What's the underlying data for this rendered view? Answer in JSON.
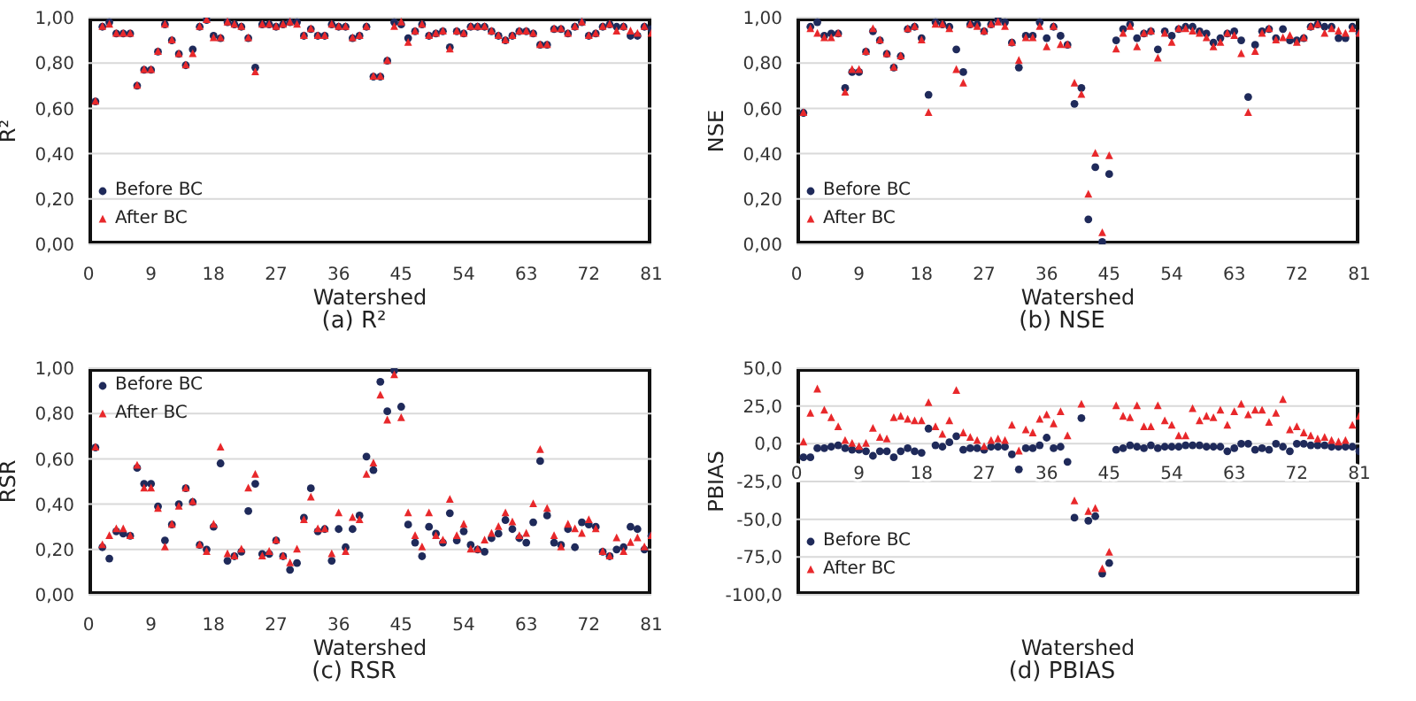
{
  "chart_data": [
    {
      "type": "scatter",
      "title": "(a) R²",
      "xlabel": "Watershed",
      "ylabel": "R²",
      "xlim": [
        0,
        81
      ],
      "xticks": [
        0,
        9,
        18,
        27,
        36,
        45,
        54,
        63,
        72,
        81
      ],
      "ylim": [
        0,
        1
      ],
      "yticks": [
        {
          "value": 0,
          "label": "0,00"
        },
        {
          "value": 0.2,
          "label": "0,20"
        },
        {
          "value": 0.4,
          "label": "0,40"
        },
        {
          "value": 0.6,
          "label": "0,60"
        },
        {
          "value": 0.8,
          "label": "0,80"
        },
        {
          "value": 1,
          "label": "1,00"
        }
      ],
      "grid": "y",
      "legend": "bottom left",
      "x": [
        1,
        2,
        3,
        4,
        5,
        6,
        7,
        8,
        9,
        10,
        11,
        12,
        13,
        14,
        15,
        16,
        17,
        18,
        19,
        20,
        21,
        22,
        23,
        24,
        25,
        26,
        27,
        28,
        29,
        30,
        31,
        32,
        33,
        34,
        35,
        36,
        37,
        38,
        39,
        40,
        41,
        42,
        43,
        44,
        45,
        46,
        47,
        48,
        49,
        50,
        51,
        52,
        53,
        54,
        55,
        56,
        57,
        58,
        59,
        60,
        61,
        62,
        63,
        64,
        65,
        66,
        67,
        68,
        69,
        70,
        71,
        72,
        73,
        74,
        75,
        76,
        77,
        78,
        79,
        80,
        81
      ],
      "series": [
        {
          "name": "Before BC",
          "color": "#1f2a5a",
          "marker": "circle",
          "values": [
            0.63,
            0.96,
            0.98,
            0.93,
            0.93,
            0.93,
            0.7,
            0.77,
            0.77,
            0.85,
            0.97,
            0.9,
            0.84,
            0.79,
            0.86,
            0.96,
            0.99,
            0.92,
            0.91,
            0.98,
            0.97,
            0.96,
            0.91,
            0.78,
            0.97,
            0.97,
            0.96,
            0.97,
            0.98,
            0.98,
            0.92,
            0.95,
            0.92,
            0.92,
            0.97,
            0.96,
            0.96,
            0.91,
            0.92,
            0.96,
            0.74,
            0.74,
            0.81,
            0.98,
            0.97,
            0.91,
            0.94,
            0.97,
            0.92,
            0.93,
            0.94,
            0.87,
            0.94,
            0.93,
            0.96,
            0.96,
            0.96,
            0.94,
            0.92,
            0.9,
            0.92,
            0.94,
            0.94,
            0.93,
            0.88,
            0.88,
            0.95,
            0.95,
            0.93,
            0.96,
            0.98,
            0.92,
            0.93,
            0.96,
            0.97,
            0.96,
            0.96,
            0.92,
            0.92,
            0.96,
            0.95
          ]
        },
        {
          "name": "After BC",
          "color": "#e8282b",
          "marker": "triangle",
          "values": [
            0.63,
            0.96,
            0.97,
            0.93,
            0.93,
            0.93,
            0.7,
            0.77,
            0.77,
            0.85,
            0.97,
            0.9,
            0.84,
            0.79,
            0.84,
            0.96,
            0.99,
            0.91,
            0.91,
            0.98,
            0.97,
            0.96,
            0.91,
            0.76,
            0.97,
            0.97,
            0.96,
            0.97,
            0.98,
            0.97,
            0.92,
            0.95,
            0.92,
            0.92,
            0.97,
            0.96,
            0.96,
            0.91,
            0.92,
            0.96,
            0.74,
            0.74,
            0.81,
            0.96,
            0.98,
            0.89,
            0.94,
            0.97,
            0.92,
            0.93,
            0.94,
            0.86,
            0.94,
            0.93,
            0.96,
            0.96,
            0.96,
            0.94,
            0.92,
            0.9,
            0.92,
            0.94,
            0.94,
            0.93,
            0.88,
            0.88,
            0.95,
            0.95,
            0.93,
            0.96,
            0.98,
            0.92,
            0.93,
            0.96,
            0.97,
            0.94,
            0.96,
            0.94,
            0.93,
            0.96,
            0.93
          ]
        }
      ]
    },
    {
      "type": "scatter",
      "title": "(b) NSE",
      "xlabel": "Watershed",
      "ylabel": "NSE",
      "xlim": [
        0,
        81
      ],
      "xticks": [
        0,
        9,
        18,
        27,
        36,
        45,
        54,
        63,
        72,
        81
      ],
      "ylim": [
        0,
        1
      ],
      "yticks": [
        {
          "value": 0,
          "label": "0,00"
        },
        {
          "value": 0.2,
          "label": "0,20"
        },
        {
          "value": 0.4,
          "label": "0,40"
        },
        {
          "value": 0.6,
          "label": "0,60"
        },
        {
          "value": 0.8,
          "label": "0,80"
        },
        {
          "value": 1,
          "label": "1,00"
        }
      ],
      "grid": "y",
      "legend": "bottom left",
      "x": [
        1,
        2,
        3,
        4,
        5,
        6,
        7,
        8,
        9,
        10,
        11,
        12,
        13,
        14,
        15,
        16,
        17,
        18,
        19,
        20,
        21,
        22,
        23,
        24,
        25,
        26,
        27,
        28,
        29,
        30,
        31,
        32,
        33,
        34,
        35,
        36,
        37,
        38,
        39,
        40,
        41,
        42,
        43,
        44,
        45,
        46,
        47,
        48,
        49,
        50,
        51,
        52,
        53,
        54,
        55,
        56,
        57,
        58,
        59,
        60,
        61,
        62,
        63,
        64,
        65,
        66,
        67,
        68,
        69,
        70,
        71,
        72,
        73,
        74,
        75,
        76,
        77,
        78,
        79,
        80,
        81
      ],
      "series": [
        {
          "name": "Before BC",
          "color": "#1f2a5a",
          "marker": "circle",
          "values": [
            0.58,
            0.96,
            0.98,
            0.92,
            0.93,
            0.93,
            0.69,
            0.76,
            0.76,
            0.85,
            0.94,
            0.9,
            0.84,
            0.78,
            0.83,
            0.95,
            0.96,
            0.91,
            0.66,
            0.98,
            0.97,
            0.96,
            0.86,
            0.76,
            0.97,
            0.97,
            0.94,
            0.97,
            0.99,
            0.98,
            0.89,
            0.78,
            0.92,
            0.92,
            0.98,
            0.91,
            0.96,
            0.92,
            0.88,
            0.62,
            0.69,
            0.11,
            0.34,
            0.01,
            0.31,
            0.9,
            0.95,
            0.97,
            0.91,
            0.93,
            0.94,
            0.86,
            0.94,
            0.92,
            0.95,
            0.96,
            0.96,
            0.94,
            0.93,
            0.89,
            0.91,
            0.93,
            0.94,
            0.9,
            0.65,
            0.88,
            0.94,
            0.95,
            0.91,
            0.95,
            0.9,
            0.9,
            0.91,
            0.96,
            0.97,
            0.96,
            0.96,
            0.91,
            0.91,
            0.96,
            0.93
          ]
        },
        {
          "name": "After BC",
          "color": "#e8282b",
          "marker": "triangle",
          "values": [
            0.58,
            0.95,
            0.93,
            0.91,
            0.91,
            0.93,
            0.67,
            0.77,
            0.77,
            0.85,
            0.95,
            0.9,
            0.84,
            0.78,
            0.83,
            0.95,
            0.96,
            0.9,
            0.58,
            0.97,
            0.97,
            0.95,
            0.77,
            0.71,
            0.97,
            0.96,
            0.94,
            0.97,
            0.98,
            0.96,
            0.89,
            0.81,
            0.91,
            0.91,
            0.96,
            0.87,
            0.96,
            0.88,
            0.88,
            0.71,
            0.66,
            0.22,
            0.4,
            0.05,
            0.39,
            0.86,
            0.93,
            0.96,
            0.87,
            0.93,
            0.94,
            0.82,
            0.93,
            0.89,
            0.95,
            0.95,
            0.94,
            0.93,
            0.91,
            0.87,
            0.89,
            0.93,
            0.92,
            0.84,
            0.58,
            0.85,
            0.93,
            0.95,
            0.9,
            0.91,
            0.92,
            0.89,
            0.91,
            0.96,
            0.97,
            0.93,
            0.95,
            0.94,
            0.93,
            0.95,
            0.93
          ]
        }
      ]
    },
    {
      "type": "scatter",
      "title": "(c) RSR",
      "xlabel": "Watershed",
      "ylabel": "RSR",
      "xlim": [
        0,
        81
      ],
      "xticks": [
        0,
        9,
        18,
        27,
        36,
        45,
        54,
        63,
        72,
        81
      ],
      "ylim": [
        0,
        1
      ],
      "yticks": [
        {
          "value": 0,
          "label": "0,00"
        },
        {
          "value": 0.2,
          "label": "0,20"
        },
        {
          "value": 0.4,
          "label": "0,40"
        },
        {
          "value": 0.6,
          "label": "0,60"
        },
        {
          "value": 0.8,
          "label": "0,80"
        },
        {
          "value": 1,
          "label": "1,00"
        }
      ],
      "grid": "y",
      "legend": "top left",
      "x": [
        1,
        2,
        3,
        4,
        5,
        6,
        7,
        8,
        9,
        10,
        11,
        12,
        13,
        14,
        15,
        16,
        17,
        18,
        19,
        20,
        21,
        22,
        23,
        24,
        25,
        26,
        27,
        28,
        29,
        30,
        31,
        32,
        33,
        34,
        35,
        36,
        37,
        38,
        39,
        40,
        41,
        42,
        43,
        44,
        45,
        46,
        47,
        48,
        49,
        50,
        51,
        52,
        53,
        54,
        55,
        56,
        57,
        58,
        59,
        60,
        61,
        62,
        63,
        64,
        65,
        66,
        67,
        68,
        69,
        70,
        71,
        72,
        73,
        74,
        75,
        76,
        77,
        78,
        79,
        80,
        81
      ],
      "series": [
        {
          "name": "Before BC",
          "color": "#1f2a5a",
          "marker": "circle",
          "values": [
            0.65,
            0.21,
            0.16,
            0.28,
            0.27,
            0.26,
            0.56,
            0.49,
            0.49,
            0.39,
            0.24,
            0.31,
            0.4,
            0.47,
            0.41,
            0.22,
            0.2,
            0.3,
            0.58,
            0.15,
            0.17,
            0.19,
            0.37,
            0.49,
            0.18,
            0.18,
            0.24,
            0.17,
            0.11,
            0.14,
            0.34,
            0.47,
            0.28,
            0.29,
            0.15,
            0.29,
            0.21,
            0.29,
            0.35,
            0.61,
            0.55,
            0.94,
            0.81,
            0.99,
            0.83,
            0.31,
            0.23,
            0.17,
            0.3,
            0.27,
            0.23,
            0.36,
            0.24,
            0.28,
            0.22,
            0.2,
            0.19,
            0.25,
            0.27,
            0.33,
            0.29,
            0.25,
            0.23,
            0.32,
            0.59,
            0.35,
            0.23,
            0.22,
            0.29,
            0.21,
            0.32,
            0.31,
            0.3,
            0.19,
            0.17,
            0.2,
            0.21,
            0.3,
            0.29,
            0.2,
            0.26
          ]
        },
        {
          "name": "After BC",
          "color": "#e8282b",
          "marker": "triangle",
          "values": [
            0.65,
            0.22,
            0.26,
            0.29,
            0.29,
            0.26,
            0.57,
            0.47,
            0.47,
            0.38,
            0.21,
            0.31,
            0.39,
            0.47,
            0.41,
            0.22,
            0.19,
            0.31,
            0.65,
            0.18,
            0.17,
            0.2,
            0.47,
            0.53,
            0.17,
            0.19,
            0.24,
            0.17,
            0.14,
            0.2,
            0.33,
            0.43,
            0.29,
            0.29,
            0.18,
            0.36,
            0.19,
            0.34,
            0.33,
            0.53,
            0.58,
            0.88,
            0.77,
            0.97,
            0.78,
            0.36,
            0.26,
            0.21,
            0.36,
            0.26,
            0.24,
            0.42,
            0.26,
            0.31,
            0.2,
            0.2,
            0.24,
            0.27,
            0.3,
            0.36,
            0.32,
            0.26,
            0.27,
            0.4,
            0.64,
            0.38,
            0.26,
            0.21,
            0.31,
            0.29,
            0.27,
            0.33,
            0.29,
            0.19,
            0.17,
            0.25,
            0.19,
            0.23,
            0.25,
            0.21,
            0.26
          ]
        }
      ]
    },
    {
      "type": "scatter",
      "title": "(d) PBIAS",
      "xlabel": "Watershed",
      "ylabel": "PBIAS",
      "xlim": [
        0,
        81
      ],
      "xticks": [
        0,
        9,
        18,
        27,
        36,
        45,
        54,
        63,
        72,
        81
      ],
      "ylim": [
        -100,
        50
      ],
      "yticks": [
        {
          "value": -100,
          "label": "-100,0"
        },
        {
          "value": -75,
          "label": "-75,0"
        },
        {
          "value": -50,
          "label": "-50,0"
        },
        {
          "value": -25,
          "label": "-25,0"
        },
        {
          "value": 0,
          "label": "0,0"
        },
        {
          "value": 25,
          "label": "25,0"
        },
        {
          "value": 50,
          "label": "50,0"
        }
      ],
      "grid": "y",
      "legend": "bottom left",
      "x": [
        1,
        2,
        3,
        4,
        5,
        6,
        7,
        8,
        9,
        10,
        11,
        12,
        13,
        14,
        15,
        16,
        17,
        18,
        19,
        20,
        21,
        22,
        23,
        24,
        25,
        26,
        27,
        28,
        29,
        30,
        31,
        32,
        33,
        34,
        35,
        36,
        37,
        38,
        39,
        40,
        41,
        42,
        43,
        44,
        45,
        46,
        47,
        48,
        49,
        50,
        51,
        52,
        53,
        54,
        55,
        56,
        57,
        58,
        59,
        60,
        61,
        62,
        63,
        64,
        65,
        66,
        67,
        68,
        69,
        70,
        71,
        72,
        73,
        74,
        75,
        76,
        77,
        78,
        79,
        80,
        81
      ],
      "series": [
        {
          "name": "Before BC",
          "color": "#1f2a5a",
          "marker": "circle",
          "values": [
            -9,
            -9,
            -3,
            -3,
            -2,
            -1,
            -3,
            -4,
            -4,
            -5,
            -8,
            -5,
            -5,
            -9,
            -5,
            -3,
            -5,
            -6,
            10,
            -1,
            -2,
            1,
            5,
            -4,
            -3,
            -3,
            -4,
            -2,
            -2,
            -2,
            -7,
            -17,
            -3,
            -3,
            -1,
            4,
            -3,
            -2,
            -12,
            -49,
            17,
            -51,
            -48,
            -86,
            -79,
            -4,
            -3,
            -1,
            -2,
            -3,
            -1,
            -3,
            -2,
            -2,
            -2,
            -1,
            -1,
            -1,
            -2,
            -2,
            -2,
            -5,
            -3,
            0,
            0,
            -4,
            -3,
            -4,
            0,
            -2,
            -5,
            0,
            0,
            -1,
            -1,
            -1,
            -2,
            -2,
            -2,
            -2,
            -5
          ]
        },
        {
          "name": "After BC",
          "color": "#e8282b",
          "marker": "triangle",
          "values": [
            1,
            20,
            36,
            22,
            17,
            11,
            2,
            0,
            -2,
            0,
            10,
            4,
            3,
            17,
            18,
            16,
            15,
            15,
            27,
            11,
            6,
            15,
            35,
            7,
            4,
            2,
            -2,
            2,
            3,
            2,
            12,
            -5,
            9,
            7,
            16,
            19,
            13,
            21,
            5,
            -38,
            26,
            -45,
            -43,
            -83,
            -72,
            25,
            18,
            17,
            25,
            11,
            11,
            25,
            15,
            12,
            5,
            5,
            23,
            15,
            18,
            17,
            22,
            12,
            21,
            26,
            19,
            22,
            22,
            14,
            20,
            29,
            9,
            11,
            7,
            5,
            3,
            4,
            2,
            1,
            2,
            12,
            18
          ]
        }
      ]
    }
  ]
}
